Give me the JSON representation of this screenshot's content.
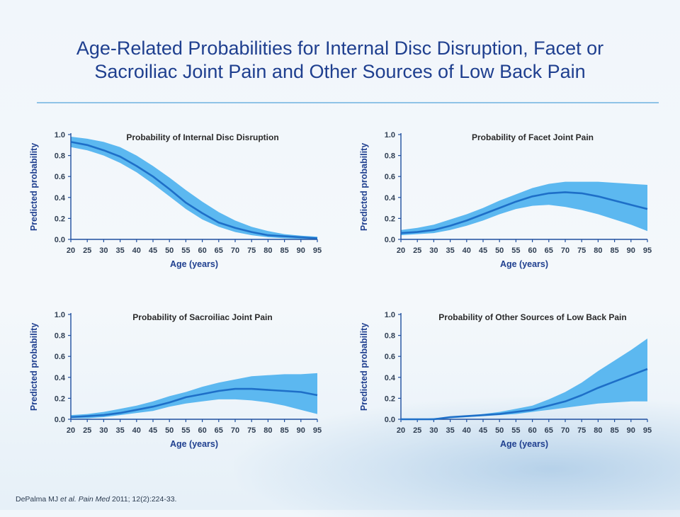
{
  "slide": {
    "title_line1": "Age-Related Probabilities for Internal Disc Disruption, Facet or",
    "title_line2": "Sacroiliac Joint Pain and Other Sources of Low Back Pain"
  },
  "citation": {
    "authors": "DePalma MJ",
    "etal": "et al.",
    "journal": "Pain Med",
    "details": "2011; 12(2):224-33."
  },
  "colors": {
    "band": "#5cb8f0",
    "line": "#1e6fc8",
    "axis": "#1f4f9f",
    "title": "#1f3f8f"
  },
  "chart_data": [
    {
      "type": "line",
      "title": "Probability of Internal Disc Disruption",
      "xlabel": "Age (years)",
      "ylabel": "Predicted probability",
      "xlim": [
        20,
        95
      ],
      "ylim": [
        0,
        1
      ],
      "x_ticks": [
        "20",
        "25",
        "30",
        "35",
        "40",
        "45",
        "50",
        "55",
        "60",
        "65",
        "70",
        "75",
        "80",
        "85",
        "90",
        "95"
      ],
      "y_ticks": [
        "0.0",
        "0.2",
        "0.4",
        "0.6",
        "0.8",
        "1.0"
      ],
      "x": [
        20,
        25,
        30,
        35,
        40,
        45,
        50,
        55,
        60,
        65,
        70,
        75,
        80,
        85,
        90,
        95
      ],
      "series": [
        {
          "values": [
            0.93,
            0.9,
            0.85,
            0.79,
            0.7,
            0.6,
            0.48,
            0.35,
            0.25,
            0.16,
            0.11,
            0.07,
            0.04,
            0.03,
            0.02,
            0.01
          ]
        }
      ],
      "band_lower": [
        0.88,
        0.85,
        0.8,
        0.73,
        0.64,
        0.53,
        0.41,
        0.29,
        0.19,
        0.12,
        0.07,
        0.04,
        0.02,
        0.01,
        0.005,
        0.003
      ],
      "band_upper": [
        0.98,
        0.96,
        0.93,
        0.88,
        0.8,
        0.7,
        0.59,
        0.47,
        0.36,
        0.26,
        0.18,
        0.12,
        0.08,
        0.05,
        0.035,
        0.025
      ]
    },
    {
      "type": "line",
      "title": "Probability of Facet Joint Pain",
      "xlabel": "Age (years)",
      "ylabel": "Predicted probability",
      "xlim": [
        20,
        95
      ],
      "ylim": [
        0,
        1
      ],
      "x_ticks": [
        "20",
        "25",
        "30",
        "35",
        "40",
        "45",
        "50",
        "55",
        "60",
        "65",
        "70",
        "75",
        "80",
        "85",
        "90",
        "95"
      ],
      "y_ticks": [
        "0.0",
        "0.2",
        "0.4",
        "0.6",
        "0.8",
        "1.0"
      ],
      "x": [
        20,
        25,
        30,
        35,
        40,
        45,
        50,
        55,
        60,
        65,
        70,
        75,
        80,
        85,
        90,
        95
      ],
      "series": [
        {
          "values": [
            0.06,
            0.07,
            0.09,
            0.13,
            0.18,
            0.24,
            0.3,
            0.36,
            0.41,
            0.44,
            0.45,
            0.44,
            0.41,
            0.37,
            0.33,
            0.29
          ]
        }
      ],
      "band_lower": [
        0.04,
        0.05,
        0.06,
        0.09,
        0.13,
        0.18,
        0.24,
        0.29,
        0.32,
        0.33,
        0.31,
        0.28,
        0.24,
        0.19,
        0.14,
        0.08
      ],
      "band_upper": [
        0.09,
        0.11,
        0.14,
        0.19,
        0.24,
        0.3,
        0.37,
        0.43,
        0.49,
        0.53,
        0.55,
        0.55,
        0.55,
        0.54,
        0.53,
        0.52
      ]
    },
    {
      "type": "line",
      "title": "Probability of Sacroiliac Joint Pain",
      "xlabel": "Age (years)",
      "ylabel": "Predicted probability",
      "xlim": [
        20,
        95
      ],
      "ylim": [
        0,
        1
      ],
      "x_ticks": [
        "20",
        "25",
        "30",
        "35",
        "40",
        "45",
        "50",
        "55",
        "60",
        "65",
        "70",
        "75",
        "80",
        "85",
        "90",
        "95"
      ],
      "y_ticks": [
        "0.0",
        "0.2",
        "0.4",
        "0.6",
        "0.8",
        "1.0"
      ],
      "x": [
        20,
        25,
        30,
        35,
        40,
        45,
        50,
        55,
        60,
        65,
        70,
        75,
        80,
        85,
        90,
        95
      ],
      "series": [
        {
          "values": [
            0.02,
            0.03,
            0.04,
            0.06,
            0.09,
            0.12,
            0.16,
            0.21,
            0.24,
            0.27,
            0.29,
            0.29,
            0.28,
            0.27,
            0.26,
            0.23
          ]
        }
      ],
      "band_lower": [
        0.01,
        0.01,
        0.02,
        0.04,
        0.06,
        0.08,
        0.12,
        0.15,
        0.17,
        0.19,
        0.19,
        0.18,
        0.16,
        0.13,
        0.09,
        0.05
      ],
      "band_upper": [
        0.04,
        0.05,
        0.07,
        0.1,
        0.13,
        0.17,
        0.22,
        0.26,
        0.31,
        0.35,
        0.38,
        0.41,
        0.42,
        0.43,
        0.43,
        0.44
      ]
    },
    {
      "type": "line",
      "title": "Probability of Other Sources of Low Back Pain",
      "xlabel": "Age (years)",
      "ylabel": "Predicted probability",
      "xlim": [
        20,
        95
      ],
      "ylim": [
        0,
        1
      ],
      "x_ticks": [
        "20",
        "25",
        "30",
        "35",
        "40",
        "45",
        "50",
        "55",
        "60",
        "65",
        "70",
        "75",
        "80",
        "85",
        "90",
        "95"
      ],
      "y_ticks": [
        "0.0",
        "0.2",
        "0.4",
        "0.6",
        "0.8",
        "1.0"
      ],
      "x": [
        20,
        25,
        30,
        35,
        40,
        45,
        50,
        55,
        60,
        65,
        70,
        75,
        80,
        85,
        90,
        95
      ],
      "series": [
        {
          "values": [
            0.0,
            0.0,
            0.0,
            0.02,
            0.03,
            0.04,
            0.05,
            0.07,
            0.09,
            0.13,
            0.17,
            0.23,
            0.3,
            0.36,
            0.42,
            0.48
          ]
        }
      ],
      "band_lower": [
        0.0,
        0.0,
        0.0,
        0.01,
        0.02,
        0.03,
        0.04,
        0.05,
        0.07,
        0.09,
        0.11,
        0.13,
        0.15,
        0.16,
        0.17,
        0.17
      ],
      "band_upper": [
        0.0,
        0.0,
        0.01,
        0.02,
        0.03,
        0.05,
        0.07,
        0.1,
        0.13,
        0.19,
        0.26,
        0.35,
        0.46,
        0.56,
        0.66,
        0.77
      ]
    }
  ]
}
